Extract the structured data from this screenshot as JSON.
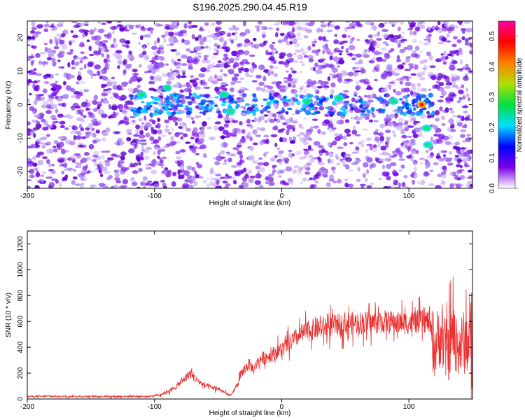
{
  "title": "S196.2025.290.04.45.R19",
  "chart_data": [
    {
      "type": "heatmap",
      "xlabel": "Height of straight line (km)",
      "ylabel": "Frequency (Hz)",
      "xlim": [
        -200,
        150
      ],
      "ylim": [
        -25,
        25
      ],
      "xticks": [
        -200,
        -100,
        0,
        100
      ],
      "yticks": [
        -20,
        -10,
        0,
        10,
        20
      ],
      "colorbar": {
        "label": "Normalized spectral amplitude",
        "range": [
          0,
          0.55
        ],
        "ticks": [
          0,
          0.1,
          0.2,
          0.3,
          0.4,
          0.5
        ],
        "colors": [
          "#ffffff",
          "#7a00e6",
          "#0000ff",
          "#00e0ff",
          "#00e040",
          "#b0e000",
          "#ff8000",
          "#ff0000",
          "#ff00a0"
        ]
      },
      "features": [
        {
          "x": -110,
          "y": 3
        },
        {
          "x": -90,
          "y": 5
        },
        {
          "x": -45,
          "y": 3
        },
        {
          "x": -40,
          "y": -2
        },
        {
          "x": 20,
          "y": 1
        },
        {
          "x": 45,
          "y": 2
        },
        {
          "x": 88,
          "y": 1
        },
        {
          "x": 110,
          "y": 0
        },
        {
          "x": 114,
          "y": -7
        },
        {
          "x": 115,
          "y": -12
        }
      ],
      "grid": false
    },
    {
      "type": "line",
      "xlabel": "Height of straight line (km)",
      "ylabel": "SNR (10 * v/v)",
      "xlim": [
        -200,
        150
      ],
      "ylim": [
        0,
        1300
      ],
      "xticks": [
        -200,
        -100,
        0,
        100
      ],
      "yticks": [
        0,
        200,
        400,
        600,
        800,
        1000,
        1200
      ],
      "color": "#e83030",
      "series": [
        {
          "x": [
            -200,
            -180,
            -160,
            -140,
            -120,
            -105,
            -95,
            -85,
            -78,
            -72,
            -68,
            -62,
            -56,
            -50,
            -45,
            -40,
            -35,
            -30,
            -26,
            -22,
            -18,
            -14,
            -10,
            -5,
            0,
            5,
            10,
            15,
            20,
            25,
            30,
            35,
            40,
            50,
            60,
            70,
            80,
            90,
            100,
            110,
            116,
            120,
            125,
            130,
            135,
            140,
            145,
            150
          ],
          "values": [
            20,
            20,
            20,
            20,
            20,
            20,
            35,
            80,
            140,
            200,
            160,
            110,
            90,
            80,
            50,
            25,
            110,
            220,
            270,
            230,
            300,
            320,
            330,
            360,
            380,
            420,
            460,
            500,
            520,
            540,
            550,
            555,
            570,
            580,
            590,
            590,
            600,
            590,
            590,
            600,
            600,
            400,
            500,
            350,
            500,
            400,
            450,
            420
          ]
        }
      ],
      "grid": false
    }
  ]
}
